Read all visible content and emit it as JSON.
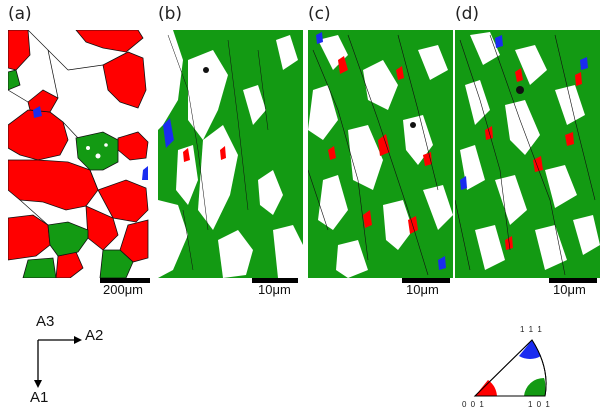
{
  "panels": [
    {
      "label": "(a)",
      "scale_label": "200μm"
    },
    {
      "label": "(b)",
      "scale_label": "10μm"
    },
    {
      "label": "(c)",
      "scale_label": "10μm"
    },
    {
      "label": "(d)",
      "scale_label": "10μm"
    }
  ],
  "axes": {
    "a3": "A3",
    "a2": "A2",
    "a1": "A1"
  },
  "ipf": {
    "p111": "1 1 1",
    "p001": "0 0 1",
    "p101": "1 0 1"
  },
  "colors": {
    "red": "#ff0000",
    "green": "#139a13",
    "blue": "#1a2cf0",
    "white": "#ffffff",
    "boundary": "#111111"
  }
}
